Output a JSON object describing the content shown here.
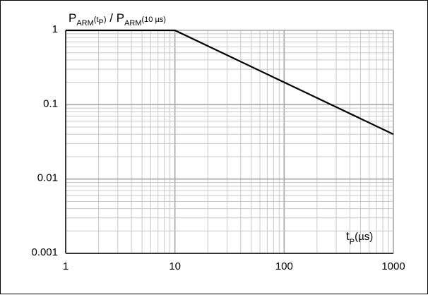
{
  "chart_data": {
    "type": "line",
    "x_scale": "log",
    "y_scale": "log",
    "xlim": [
      1,
      1000
    ],
    "ylim": [
      0.001,
      1
    ],
    "grid": true,
    "x_ticks": [
      "1",
      "10",
      "100",
      "1000"
    ],
    "y_ticks": [
      "1",
      "0.1",
      "0.01",
      "0.001"
    ],
    "ylabel": {
      "main": "P",
      "sub": "ARM",
      "arg_open": "(t",
      "arg_sub": "P",
      "arg_close": ")",
      "divider": " / ",
      "main2": "P",
      "sub2": "ARM",
      "arg2": "(10 µs)"
    },
    "xlabel": {
      "main": "t",
      "sub": "P",
      "unit": "(µs)"
    },
    "series": [
      {
        "x": [
          1,
          10,
          100,
          1000
        ],
        "y": [
          1,
          1,
          0.2,
          0.04
        ]
      }
    ],
    "colors": {
      "line": "#000000",
      "grid_major": "#a6a6a6",
      "grid_minor": "#c8c8c8",
      "axis": "#000000"
    }
  }
}
